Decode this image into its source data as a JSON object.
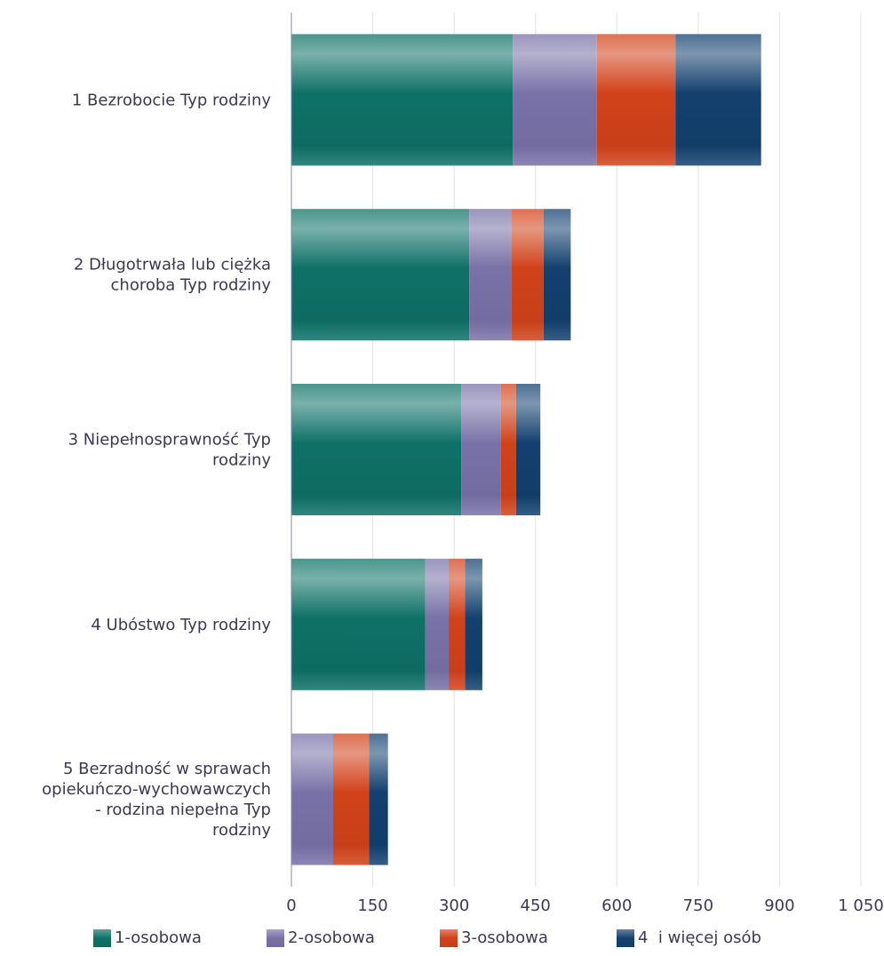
{
  "chart_data": {
    "type": "bar",
    "orientation": "horizontal",
    "stacked": true,
    "categories": [
      "1 Bezrobocie Typ rodziny",
      "2 Długotrwała lub ciężka choroba Typ rodziny",
      "3 Niepełnosprawność Typ rodziny",
      "4 Ubóstwo Typ rodziny",
      "5 Bezradność w sprawach opiekuńczo-wychowawczych - rodzina niepełna Typ rodziny"
    ],
    "category_lines": [
      [
        "1 Bezrobocie Typ rodziny"
      ],
      [
        "2 Długotrwała lub ciężka",
        "choroba Typ rodziny"
      ],
      [
        "3 Niepełnosprawność Typ",
        "rodziny"
      ],
      [
        "4 Ubóstwo Typ rodziny"
      ],
      [
        "5 Bezradność w sprawach",
        "opiekuńczo-wychowawczych",
        "- rodzina niepełna Typ",
        "rodziny"
      ]
    ],
    "series": [
      {
        "name": "1-osobowa",
        "values": [
          408,
          328,
          313,
          247,
          0
        ],
        "color": "#0e7167"
      },
      {
        "name": "2-osobowa",
        "values": [
          155,
          77,
          73,
          43,
          77
        ],
        "color": "#7872a8"
      },
      {
        "name": "3-osobowa",
        "values": [
          145,
          60,
          28,
          30,
          66
        ],
        "color": "#d1421a"
      },
      {
        "name": "4  i więcej osób",
        "values": [
          158,
          50,
          45,
          32,
          35
        ],
        "color": "#13406f"
      }
    ],
    "x_ticks": [
      "0",
      "150",
      "300",
      "450",
      "600",
      "750",
      "900",
      "1 050"
    ],
    "xlim": [
      0,
      1050
    ],
    "grid": true,
    "legend_position": "bottom"
  }
}
